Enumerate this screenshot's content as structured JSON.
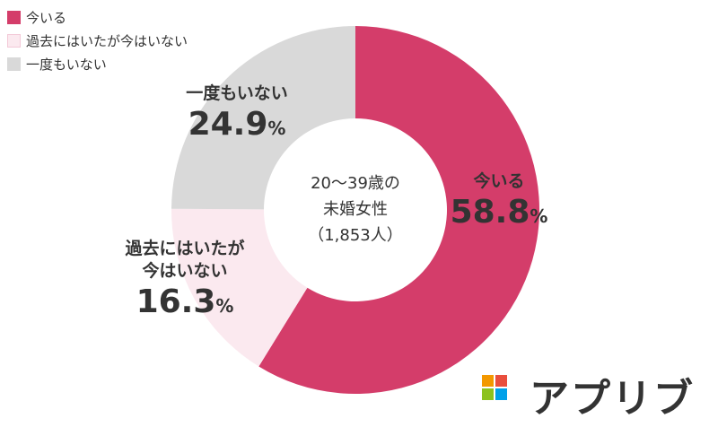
{
  "chart_data": {
    "type": "donut",
    "categories": [
      "今いる",
      "過去にはいたが今はいない",
      "一度もいない"
    ],
    "values": [
      58.8,
      16.3,
      24.9
    ],
    "value_labels": [
      "58.8%",
      "16.3%",
      "24.9%"
    ],
    "colors": [
      "#d43d6a",
      "#fbe9ef",
      "#d9d9d9"
    ],
    "center_label": [
      "20〜39歳の",
      "未婚女性",
      "（1,853人）"
    ],
    "legend": "upper left"
  },
  "brand": "アプリブ"
}
